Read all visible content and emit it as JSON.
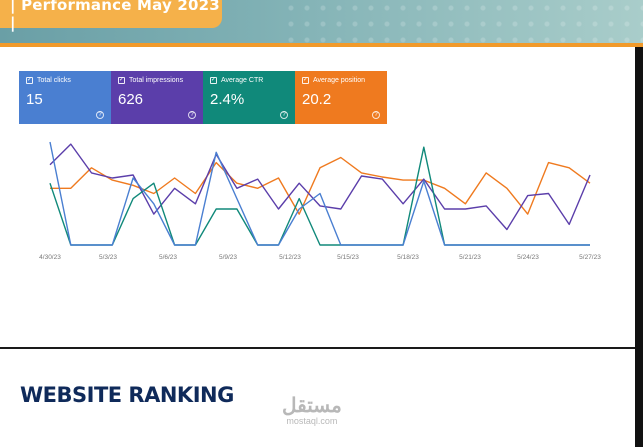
{
  "header": {
    "title": "| Performance May 2023 |",
    "colors": {
      "band": "#7fb0b4",
      "tag": "#f5b14a",
      "rule": "#f19a2b"
    }
  },
  "metrics": [
    {
      "label": "Total clicks",
      "value": "15",
      "color": "#4a7fd1",
      "icon": "checkbox-icon"
    },
    {
      "label": "Total impressions",
      "value": "626",
      "color": "#5b3eaa",
      "icon": "checkbox-icon"
    },
    {
      "label": "Average CTR",
      "value": "2.4%",
      "color": "#10897a",
      "icon": "checkbox-icon"
    },
    {
      "label": "Average position",
      "value": "20.2",
      "color": "#ef7a1f",
      "icon": "checkbox-icon"
    }
  ],
  "chart_data": {
    "type": "line",
    "x_ticks": [
      "4/30/23",
      "5/3/23",
      "5/6/23",
      "5/9/23",
      "5/12/23",
      "5/15/23",
      "5/18/23",
      "5/21/23",
      "5/24/23",
      "5/27/23"
    ],
    "series": [
      {
        "color": "#ef7a1f",
        "values": [
          0.55,
          0.55,
          0.75,
          0.63,
          0.58,
          0.5,
          0.65,
          0.5,
          0.8,
          0.6,
          0.55,
          0.65,
          0.3,
          0.75,
          0.85,
          0.7,
          0.66,
          0.63,
          0.63,
          0.55,
          0.4,
          0.7,
          0.55,
          0.3,
          0.8,
          0.75,
          0.6
        ]
      },
      {
        "color": "#5b3eaa",
        "values": [
          0.78,
          0.98,
          0.7,
          0.65,
          0.68,
          0.3,
          0.55,
          0.4,
          0.88,
          0.55,
          0.64,
          0.35,
          0.6,
          0.38,
          0.35,
          0.67,
          0.64,
          0.4,
          0.64,
          0.35,
          0.35,
          0.38,
          0.15,
          0.48,
          0.5,
          0.2,
          0.68
        ]
      },
      {
        "color": "#10897a",
        "values": [
          0.6,
          0.0,
          0.0,
          0.0,
          0.45,
          0.6,
          0.0,
          0.0,
          0.35,
          0.35,
          0.0,
          0.0,
          0.45,
          0.0,
          0.0,
          0.0,
          0.0,
          0.0,
          0.95,
          0.0,
          0.0,
          0.0,
          0.0,
          0.0,
          0.0,
          0.0,
          0.0
        ]
      },
      {
        "color": "#4a7fd1",
        "values": [
          1.0,
          0.0,
          0.0,
          0.0,
          0.65,
          0.4,
          0.0,
          0.0,
          0.9,
          0.45,
          0.0,
          0.0,
          0.35,
          0.5,
          0.0,
          0.0,
          0.0,
          0.0,
          0.62,
          0.0,
          0.0,
          0.0,
          0.0,
          0.0,
          0.0,
          0.0,
          0.0
        ]
      }
    ]
  },
  "section": {
    "title": "WEBSITE RANKING"
  },
  "watermark": {
    "arabic": "مستقل",
    "latin": "mostaql.com"
  }
}
